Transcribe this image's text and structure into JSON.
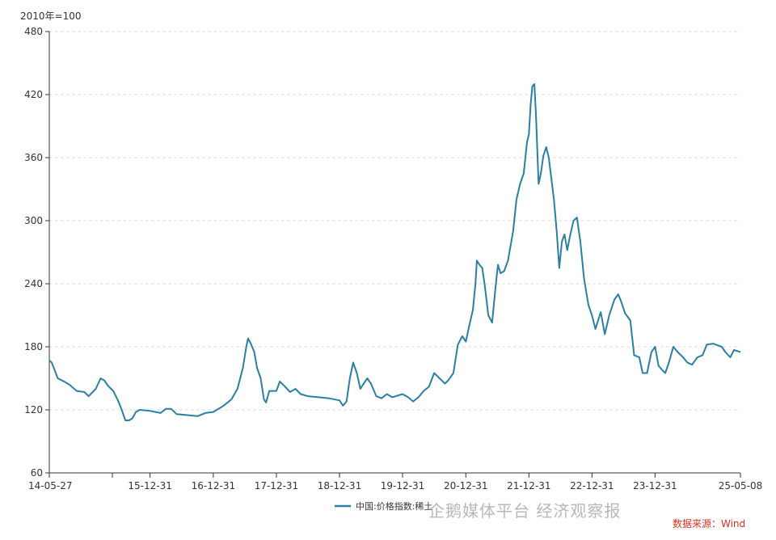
{
  "unit_label": "2010年=100",
  "source_label": "数据来源：Wind",
  "watermark": "企鹅媒体平台 经济观察报",
  "colors": {
    "line": "#2a7fa3",
    "axis": "#333333",
    "grid": "#dddddd",
    "source": "#e0301e"
  },
  "chart_data": {
    "type": "line",
    "title": "",
    "xlabel": "",
    "ylabel": "2010年=100",
    "ylim": [
      60,
      480
    ],
    "yticks": [
      60,
      120,
      180,
      240,
      300,
      360,
      420,
      480
    ],
    "grid": true,
    "legend": "bottom-center",
    "x_range": [
      "2014-05-27",
      "2025-05-08"
    ],
    "xticks": [
      {
        "date": "2014-05-27",
        "label": "14-05-27"
      },
      {
        "date": "2015-12-31",
        "label": "15-12-31"
      },
      {
        "date": "2016-12-31",
        "label": "16-12-31"
      },
      {
        "date": "2017-12-31",
        "label": "17-12-31"
      },
      {
        "date": "2018-12-31",
        "label": "18-12-31"
      },
      {
        "date": "2019-12-31",
        "label": "19-12-31"
      },
      {
        "date": "2020-12-31",
        "label": "20-12-31"
      },
      {
        "date": "2021-12-31",
        "label": "21-12-31"
      },
      {
        "date": "2022-12-31",
        "label": "22-12-31"
      },
      {
        "date": "2023-12-31",
        "label": "23-12-31"
      },
      {
        "date": "2025-05-08",
        "label": "25-05-08"
      }
    ],
    "series": [
      {
        "name": "中国:价格指数:稀土",
        "points": [
          [
            "2014-05-27",
            167
          ],
          [
            "2014-06-10",
            165
          ],
          [
            "2014-07-15",
            150
          ],
          [
            "2014-08-20",
            147
          ],
          [
            "2014-09-20",
            144
          ],
          [
            "2014-11-01",
            138
          ],
          [
            "2014-12-15",
            137
          ],
          [
            "2015-01-10",
            133
          ],
          [
            "2015-02-20",
            140
          ],
          [
            "2015-03-20",
            150
          ],
          [
            "2015-04-10",
            148
          ],
          [
            "2015-05-01",
            143
          ],
          [
            "2015-06-01",
            138
          ],
          [
            "2015-07-01",
            128
          ],
          [
            "2015-07-20",
            120
          ],
          [
            "2015-08-10",
            110
          ],
          [
            "2015-09-01",
            110
          ],
          [
            "2015-09-20",
            112
          ],
          [
            "2015-10-10",
            118
          ],
          [
            "2015-11-01",
            120
          ],
          [
            "2015-12-31",
            119
          ],
          [
            "2016-03-01",
            117
          ],
          [
            "2016-04-01",
            121
          ],
          [
            "2016-05-01",
            121
          ],
          [
            "2016-06-01",
            116
          ],
          [
            "2016-08-01",
            115
          ],
          [
            "2016-10-01",
            114
          ],
          [
            "2016-11-15",
            117
          ],
          [
            "2016-12-31",
            118
          ],
          [
            "2017-01-20",
            120
          ],
          [
            "2017-03-01",
            124
          ],
          [
            "2017-04-15",
            130
          ],
          [
            "2017-05-20",
            140
          ],
          [
            "2017-06-20",
            160
          ],
          [
            "2017-07-10",
            180
          ],
          [
            "2017-07-20",
            188
          ],
          [
            "2017-08-05",
            183
          ],
          [
            "2017-08-25",
            175
          ],
          [
            "2017-09-10",
            160
          ],
          [
            "2017-10-01",
            150
          ],
          [
            "2017-10-20",
            130
          ],
          [
            "2017-11-01",
            127
          ],
          [
            "2017-11-20",
            138
          ],
          [
            "2017-12-31",
            138
          ],
          [
            "2018-01-20",
            147
          ],
          [
            "2018-02-20",
            142
          ],
          [
            "2018-03-20",
            137
          ],
          [
            "2018-04-20",
            140
          ],
          [
            "2018-05-20",
            135
          ],
          [
            "2018-07-01",
            133
          ],
          [
            "2018-09-01",
            132
          ],
          [
            "2018-11-01",
            131
          ],
          [
            "2018-12-31",
            129
          ],
          [
            "2019-01-20",
            124
          ],
          [
            "2019-02-10",
            128
          ],
          [
            "2019-03-01",
            150
          ],
          [
            "2019-03-20",
            165
          ],
          [
            "2019-04-10",
            155
          ],
          [
            "2019-05-01",
            140
          ],
          [
            "2019-05-20",
            145
          ],
          [
            "2019-06-10",
            150
          ],
          [
            "2019-07-01",
            145
          ],
          [
            "2019-08-01",
            133
          ],
          [
            "2019-09-01",
            131
          ],
          [
            "2019-10-01",
            135
          ],
          [
            "2019-11-01",
            132
          ],
          [
            "2019-12-31",
            135
          ],
          [
            "2020-02-01",
            132
          ],
          [
            "2020-03-01",
            128
          ],
          [
            "2020-04-01",
            132
          ],
          [
            "2020-05-01",
            138
          ],
          [
            "2020-06-01",
            142
          ],
          [
            "2020-07-01",
            155
          ],
          [
            "2020-08-01",
            150
          ],
          [
            "2020-09-01",
            145
          ],
          [
            "2020-09-20",
            148
          ],
          [
            "2020-10-20",
            155
          ],
          [
            "2020-11-15",
            182
          ],
          [
            "2020-12-10",
            190
          ],
          [
            "2020-12-31",
            185
          ],
          [
            "2021-01-20",
            200
          ],
          [
            "2021-02-10",
            215
          ],
          [
            "2021-02-25",
            240
          ],
          [
            "2021-03-05",
            262
          ],
          [
            "2021-03-20",
            258
          ],
          [
            "2021-04-05",
            255
          ],
          [
            "2021-04-20",
            238
          ],
          [
            "2021-05-10",
            210
          ],
          [
            "2021-06-01",
            203
          ],
          [
            "2021-06-20",
            235
          ],
          [
            "2021-07-05",
            258
          ],
          [
            "2021-07-20",
            250
          ],
          [
            "2021-08-10",
            252
          ],
          [
            "2021-09-01",
            262
          ],
          [
            "2021-10-01",
            290
          ],
          [
            "2021-10-20",
            320
          ],
          [
            "2021-11-10",
            335
          ],
          [
            "2021-12-01",
            345
          ],
          [
            "2021-12-20",
            375
          ],
          [
            "2021-12-31",
            382
          ],
          [
            "2022-01-10",
            410
          ],
          [
            "2022-01-20",
            428
          ],
          [
            "2022-02-01",
            430
          ],
          [
            "2022-02-10",
            400
          ],
          [
            "2022-02-25",
            335
          ],
          [
            "2022-03-10",
            345
          ],
          [
            "2022-03-25",
            362
          ],
          [
            "2022-04-10",
            370
          ],
          [
            "2022-04-25",
            360
          ],
          [
            "2022-05-10",
            340
          ],
          [
            "2022-05-25",
            320
          ],
          [
            "2022-06-10",
            290
          ],
          [
            "2022-06-25",
            255
          ],
          [
            "2022-07-10",
            280
          ],
          [
            "2022-07-25",
            287
          ],
          [
            "2022-08-10",
            272
          ],
          [
            "2022-08-25",
            285
          ],
          [
            "2022-09-15",
            300
          ],
          [
            "2022-10-05",
            303
          ],
          [
            "2022-10-25",
            280
          ],
          [
            "2022-11-15",
            245
          ],
          [
            "2022-12-10",
            220
          ],
          [
            "2022-12-31",
            210
          ],
          [
            "2023-01-20",
            197
          ],
          [
            "2023-02-20",
            213
          ],
          [
            "2023-03-15",
            192
          ],
          [
            "2023-04-10",
            210
          ],
          [
            "2023-05-10",
            225
          ],
          [
            "2023-06-01",
            230
          ],
          [
            "2023-06-20",
            222
          ],
          [
            "2023-07-10",
            212
          ],
          [
            "2023-08-10",
            205
          ],
          [
            "2023-09-01",
            172
          ],
          [
            "2023-10-01",
            170
          ],
          [
            "2023-10-20",
            155
          ],
          [
            "2023-11-15",
            155
          ],
          [
            "2023-12-10",
            175
          ],
          [
            "2023-12-31",
            180
          ],
          [
            "2024-01-20",
            162
          ],
          [
            "2024-02-10",
            158
          ],
          [
            "2024-02-28",
            155
          ],
          [
            "2024-03-20",
            165
          ],
          [
            "2024-04-15",
            180
          ],
          [
            "2024-05-10",
            175
          ],
          [
            "2024-06-10",
            170
          ],
          [
            "2024-07-05",
            165
          ],
          [
            "2024-08-01",
            163
          ],
          [
            "2024-09-01",
            170
          ],
          [
            "2024-10-01",
            172
          ],
          [
            "2024-10-25",
            182
          ],
          [
            "2024-12-01",
            183
          ],
          [
            "2025-01-20",
            180
          ],
          [
            "2025-02-10",
            175
          ],
          [
            "2025-03-10",
            170
          ],
          [
            "2025-04-01",
            177
          ],
          [
            "2025-05-08",
            175
          ]
        ]
      }
    ]
  }
}
